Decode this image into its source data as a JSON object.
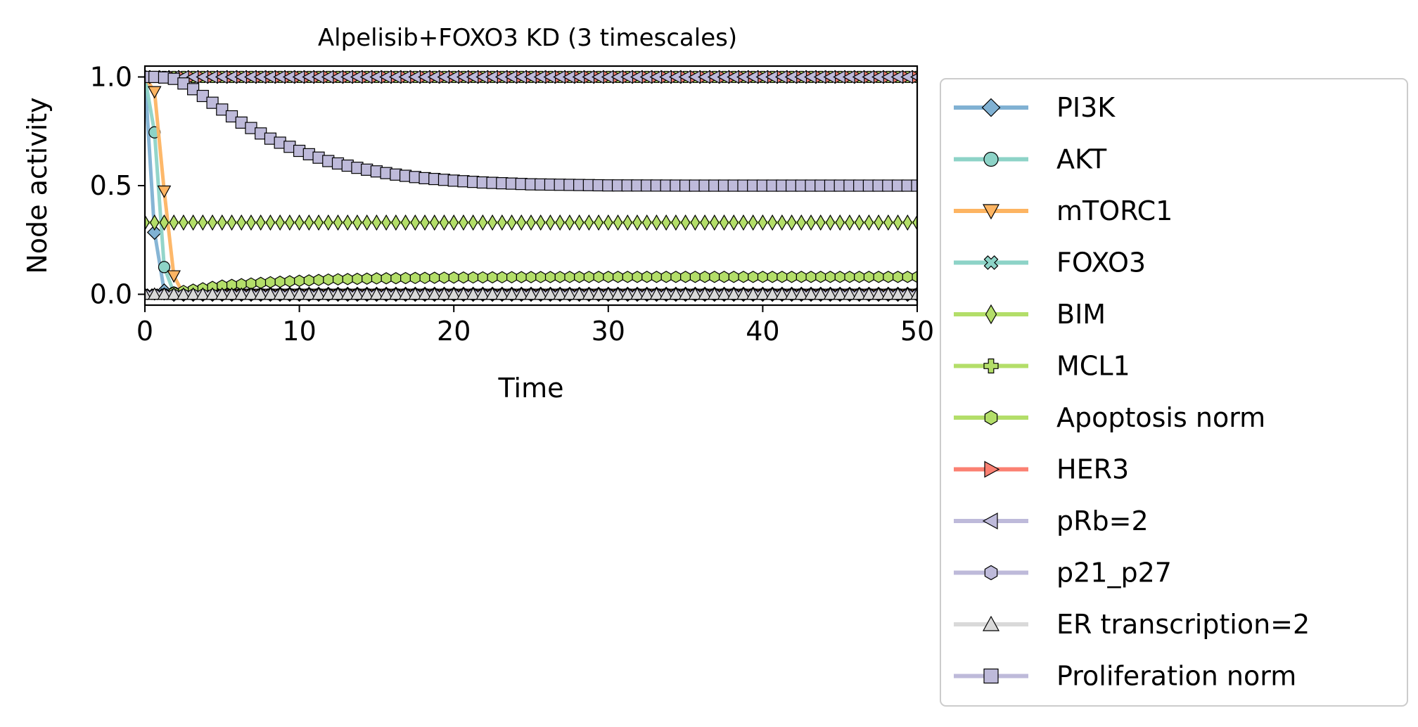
{
  "chart_data": {
    "type": "line",
    "title": "Alpelisib+FOXO3 KD (3 timescales)",
    "xlabel": "Time",
    "ylabel": "Node activity",
    "xlim": [
      0,
      50
    ],
    "ylim": [
      -0.05,
      1.05
    ],
    "xticks": [
      "0",
      "10",
      "20",
      "30",
      "40",
      "50"
    ],
    "yticks": [
      "0.0",
      "0.5",
      "1.0"
    ],
    "grid": false,
    "legend_position": "outside-right",
    "series": [
      {
        "name": "PI3K",
        "color": "#80b1d3",
        "marker": "diamond",
        "x": [
          0,
          0.5,
          1,
          1.5,
          2,
          2.5,
          3,
          5,
          10,
          20,
          30,
          40,
          50
        ],
        "values": [
          1.0,
          0.37,
          0.03,
          0.0,
          0.0,
          0.0,
          0.0,
          0.0,
          0.0,
          0.0,
          0.0,
          0.0,
          0.0
        ]
      },
      {
        "name": "AKT",
        "color": "#8dd3c7",
        "marker": "circle",
        "x": [
          0,
          0.5,
          1,
          1.5,
          2,
          2.5,
          3,
          5,
          10,
          20,
          30,
          40,
          50
        ],
        "values": [
          1.0,
          0.92,
          0.22,
          0.03,
          0.0,
          0.0,
          0.0,
          0.0,
          0.0,
          0.0,
          0.0,
          0.0,
          0.0
        ]
      },
      {
        "name": "mTORC1",
        "color": "#fdb462",
        "marker": "triangle-down",
        "x": [
          0,
          0.5,
          1,
          1.5,
          2,
          2.5,
          3,
          5,
          10,
          20,
          30,
          40,
          50
        ],
        "values": [
          1.0,
          1.0,
          0.73,
          0.22,
          0.04,
          0.0,
          0.0,
          0.0,
          0.0,
          0.0,
          0.0,
          0.0,
          0.0
        ]
      },
      {
        "name": "FOXO3",
        "color": "#8dd3c7",
        "marker": "x",
        "x": [
          0,
          10,
          20,
          30,
          40,
          50
        ],
        "values": [
          0.0,
          0.0,
          0.0,
          0.0,
          0.0,
          0.0
        ]
      },
      {
        "name": "BIM",
        "color": "#b3de69",
        "marker": "thin-diamond",
        "x": [
          0,
          10,
          20,
          30,
          40,
          50
        ],
        "values": [
          0.33,
          0.33,
          0.33,
          0.33,
          0.33,
          0.33
        ]
      },
      {
        "name": "MCL1",
        "color": "#b3de69",
        "marker": "plus",
        "x": [
          0,
          10,
          20,
          30,
          40,
          50
        ],
        "values": [
          1.0,
          1.0,
          1.0,
          1.0,
          1.0,
          1.0
        ]
      },
      {
        "name": "Apoptosis norm",
        "color": "#b3de69",
        "marker": "hexagon",
        "x": [
          0,
          1,
          2,
          3,
          4,
          5,
          6,
          8,
          10,
          12,
          15,
          20,
          25,
          30,
          40,
          50
        ],
        "values": [
          0.0,
          0.0,
          0.01,
          0.02,
          0.03,
          0.04,
          0.045,
          0.055,
          0.062,
          0.068,
          0.073,
          0.077,
          0.079,
          0.08,
          0.08,
          0.08
        ]
      },
      {
        "name": "HER3",
        "color": "#fb8072",
        "marker": "triangle-right",
        "x": [
          0,
          10,
          20,
          30,
          40,
          50
        ],
        "values": [
          1.0,
          1.0,
          1.0,
          1.0,
          1.0,
          1.0
        ]
      },
      {
        "name": "pRb=2",
        "color": "#bebada",
        "marker": "triangle-left",
        "x": [
          0,
          10,
          20,
          30,
          40,
          50
        ],
        "values": [
          1.0,
          1.0,
          1.0,
          1.0,
          1.0,
          1.0
        ]
      },
      {
        "name": "p21_p27",
        "color": "#bebada",
        "marker": "hexagon",
        "x": [
          0,
          10,
          20,
          30,
          40,
          50
        ],
        "values": [
          0.0,
          0.0,
          0.0,
          0.0,
          0.0,
          0.0
        ]
      },
      {
        "name": "ER transcription=2",
        "color": "#d9d9d9",
        "marker": "triangle-up",
        "x": [
          0,
          10,
          20,
          30,
          40,
          50
        ],
        "values": [
          0.0,
          0.0,
          0.0,
          0.0,
          0.0,
          0.0
        ]
      },
      {
        "name": "Proliferation norm",
        "color": "#bebada",
        "marker": "square",
        "x": [
          0,
          1,
          2,
          3,
          4,
          5,
          6,
          7,
          8,
          9,
          10,
          12,
          14,
          16,
          18,
          20,
          22,
          25,
          30,
          35,
          40,
          45,
          50
        ],
        "values": [
          1.0,
          1.0,
          0.99,
          0.95,
          0.9,
          0.85,
          0.8,
          0.76,
          0.72,
          0.69,
          0.66,
          0.61,
          0.578,
          0.553,
          0.535,
          0.523,
          0.514,
          0.506,
          0.501,
          0.5,
          0.5,
          0.5,
          0.5
        ]
      }
    ]
  }
}
